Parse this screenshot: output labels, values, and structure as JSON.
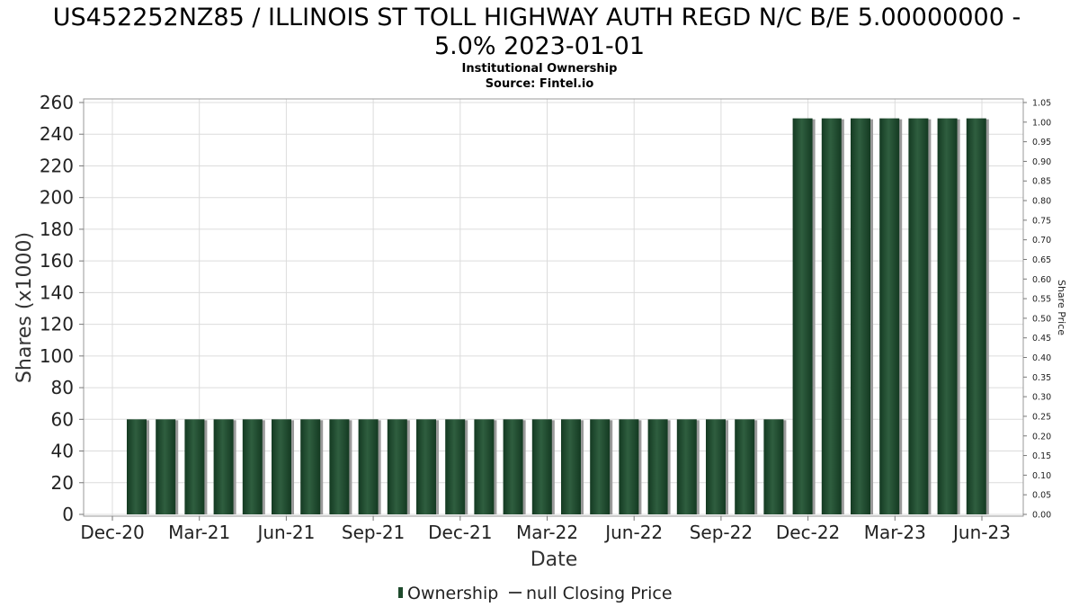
{
  "chart_data": {
    "type": "bar",
    "title_lines": [
      "US452252NZ85 / ILLINOIS ST TOLL HIGHWAY AUTH REGD N/C B/E 5.00000000 -",
      "5.0% 2023-01-01"
    ],
    "subtitle": "Institutional Ownership",
    "source": "Source: Fintel.io",
    "xlabel": "Date",
    "ylabel": "Shares (x1000)",
    "y2label": "Share Price",
    "ylim": [
      0,
      260
    ],
    "yticks": [
      0,
      20,
      40,
      60,
      80,
      100,
      120,
      140,
      160,
      180,
      200,
      220,
      240,
      260
    ],
    "y2lim": [
      0,
      1.05
    ],
    "y2ticks": [
      "0.00",
      "0.05",
      "0.10",
      "0.15",
      "0.20",
      "0.25",
      "0.30",
      "0.35",
      "0.40",
      "0.45",
      "0.50",
      "0.55",
      "0.60",
      "0.65",
      "0.70",
      "0.75",
      "0.80",
      "0.85",
      "0.90",
      "0.95",
      "1.00",
      "1.05"
    ],
    "x_tick_labels": [
      "Dec-20",
      "Mar-21",
      "Jun-21",
      "Sep-21",
      "Dec-21",
      "Mar-22",
      "Jun-22",
      "Sep-22",
      "Dec-22",
      "Mar-23",
      "Jun-23"
    ],
    "grid": true,
    "series": [
      {
        "name": "Ownership",
        "color": "#1e4a2c",
        "values": [
          60,
          60,
          60,
          60,
          60,
          60,
          60,
          60,
          60,
          60,
          60,
          60,
          60,
          60,
          60,
          60,
          60,
          60,
          60,
          60,
          60,
          60,
          60,
          250,
          250,
          250,
          250,
          250,
          250,
          250
        ]
      }
    ],
    "legend": {
      "position": "bottom-center",
      "items": [
        {
          "label": "Ownership",
          "marker": "bar"
        },
        {
          "label": "null Closing Price",
          "marker": "line"
        }
      ]
    }
  }
}
